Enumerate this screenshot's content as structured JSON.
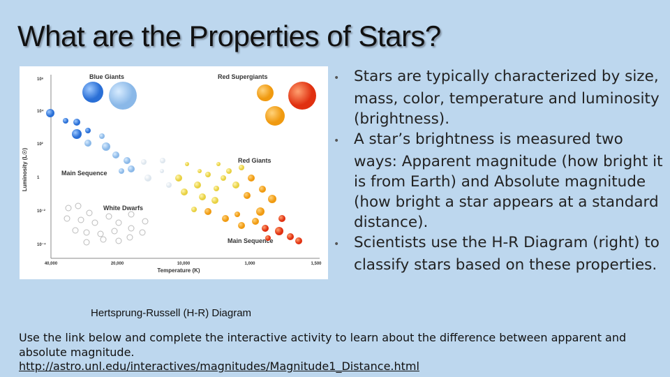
{
  "title": "What are the Properties of Stars?",
  "diagram": {
    "labels": [
      "Blue Giants",
      "Red Supergiants",
      "Red Giants",
      "Main Sequence",
      "White Dwarfs",
      "Main Sequence"
    ],
    "y_axis_label": "Luminosity (L☉)",
    "x_axis_label": "Temperature (K)",
    "y_ticks": [
      "10⁶",
      "10⁴",
      "10²",
      "1",
      "10⁻²",
      "10⁻⁴"
    ],
    "x_ticks": [
      "40,000",
      "20,000",
      "10,000",
      "1,000",
      "1,500"
    ],
    "caption": "Hertsprung-Russell (H-R) Diagram"
  },
  "bullets": [
    "Stars are typically characterized by size, mass, color, temperature and luminosity (brightness).",
    "A star’s brightness is measured two ways: Apparent magnitude (how bright it is from Earth) and Absolute magnitude (how bright a star appears at a standard distance).",
    "Scientists use the H-R Diagram (right) to classify stars based on these properties."
  ],
  "instructions": "Use the link below and complete the interactive activity to learn about the difference between apparent and absolute magnitude.",
  "link": "http://astro.unl.edu/interactives/magnitudes/Magnitude1_Distance.html"
}
